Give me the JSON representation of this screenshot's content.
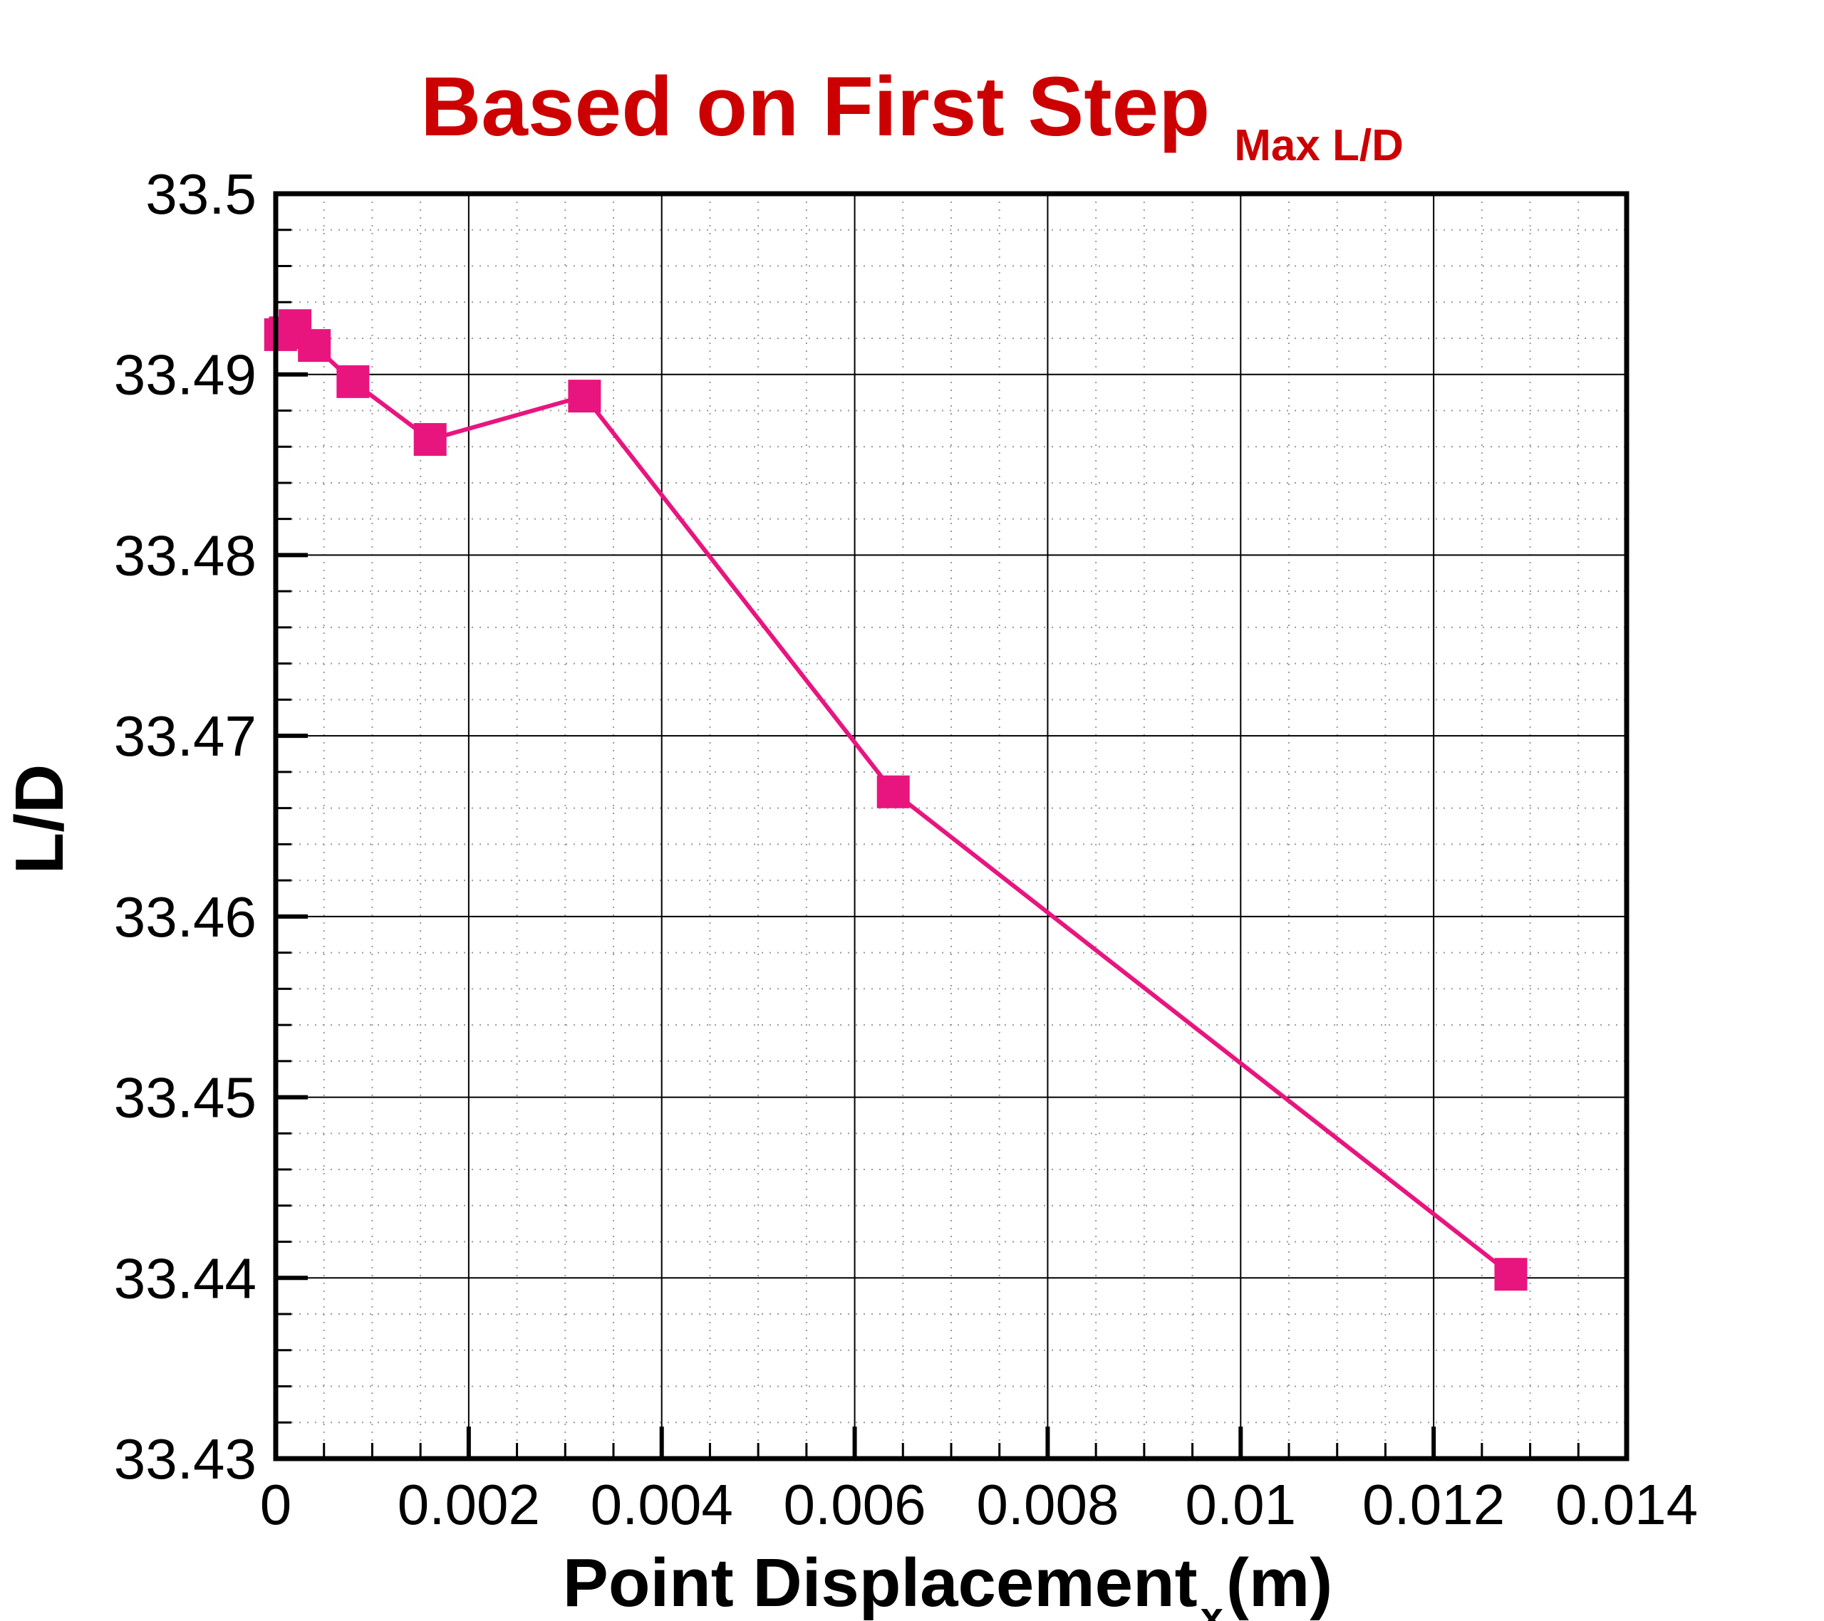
{
  "chart_data": {
    "type": "line",
    "title": "Based on First Step",
    "title_subscript": "Max L/D",
    "xlabel": "Point Displacement",
    "xlabel_subscript": "x",
    "xlabel_suffix": " (m)",
    "ylabel": "L/D",
    "xlim": [
      0,
      0.014
    ],
    "ylim": [
      33.43,
      33.5
    ],
    "x_ticks": [
      0,
      0.002,
      0.004,
      0.006,
      0.008,
      0.01,
      0.012,
      0.014
    ],
    "x_tick_labels": [
      "0",
      "0.002",
      "0.004",
      "0.006",
      "0.008",
      "0.01",
      "0.012",
      "0.014"
    ],
    "y_ticks": [
      33.43,
      33.44,
      33.45,
      33.46,
      33.47,
      33.48,
      33.49,
      33.5
    ],
    "y_tick_labels": [
      "33.43",
      "33.44",
      "33.45",
      "33.46",
      "33.47",
      "33.48",
      "33.49",
      "33.5"
    ],
    "grid": true,
    "marker": "square",
    "series": [
      {
        "color": "#e8157f",
        "x": [
          5e-05,
          0.0001,
          0.0002,
          0.0004,
          0.0008,
          0.0016,
          0.0032,
          0.0064,
          0.0128
        ],
        "y": [
          33.4922,
          33.4923,
          33.4927,
          33.4916,
          33.4896,
          33.4864,
          33.4888,
          33.4669,
          33.4402
        ]
      }
    ]
  }
}
